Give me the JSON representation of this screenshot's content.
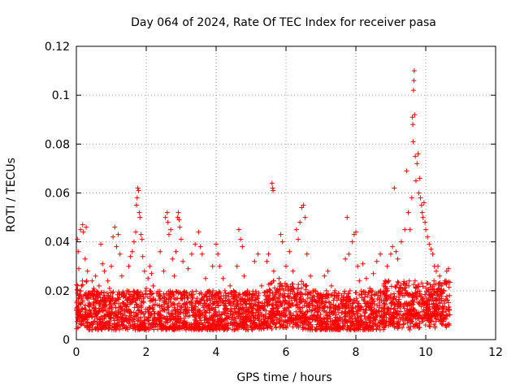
{
  "chart_data": {
    "type": "scatter",
    "title": "Day 064 of 2024, Rate Of TEC Index for receiver pasa",
    "xlabel": "GPS time / hours",
    "ylabel": "ROTI / TECUs",
    "xlim": [
      0,
      12
    ],
    "ylim": [
      0,
      0.12
    ],
    "x_ticks": [
      0,
      2,
      4,
      6,
      8,
      10,
      12
    ],
    "x_tick_labels": [
      "0",
      "2",
      "4",
      "6",
      "8",
      "10",
      "12"
    ],
    "y_ticks": [
      0,
      0.02,
      0.04,
      0.06,
      0.08,
      0.1,
      0.12
    ],
    "y_tick_labels": [
      "0",
      "0.02",
      "0.04",
      "0.06",
      "0.08",
      "0.1",
      "0.12"
    ],
    "grid": true,
    "marker": "plus",
    "color": "#ff0000",
    "series": [
      {
        "name": "ROTI",
        "points": [
          [
            0.02,
            0.012
          ],
          [
            0.03,
            0.041
          ],
          [
            0.05,
            0.036
          ],
          [
            0.07,
            0.029
          ],
          [
            0.1,
            0.018
          ],
          [
            0.12,
            0.045
          ],
          [
            0.15,
            0.022
          ],
          [
            0.18,
            0.047
          ],
          [
            0.2,
            0.044
          ],
          [
            0.25,
            0.033
          ],
          [
            0.28,
            0.046
          ],
          [
            0.32,
            0.028
          ],
          [
            0.36,
            0.015
          ],
          [
            0.4,
            0.019
          ],
          [
            0.45,
            0.024
          ],
          [
            0.5,
            0.021
          ],
          [
            0.55,
            0.026
          ],
          [
            0.6,
            0.018
          ],
          [
            0.65,
            0.022
          ],
          [
            0.7,
            0.039
          ],
          [
            0.75,
            0.031
          ],
          [
            0.8,
            0.028
          ],
          [
            0.85,
            0.016
          ],
          [
            0.9,
            0.024
          ],
          [
            0.95,
            0.021
          ],
          [
            1.0,
            0.03
          ],
          [
            1.05,
            0.042
          ],
          [
            1.1,
            0.046
          ],
          [
            1.15,
            0.038
          ],
          [
            1.2,
            0.043
          ],
          [
            1.25,
            0.035
          ],
          [
            1.3,
            0.026
          ],
          [
            1.35,
            0.019
          ],
          [
            1.4,
            0.014
          ],
          [
            1.45,
            0.02
          ],
          [
            1.5,
            0.03
          ],
          [
            1.55,
            0.034
          ],
          [
            1.6,
            0.036
          ],
          [
            1.65,
            0.04
          ],
          [
            1.7,
            0.044
          ],
          [
            1.72,
            0.055
          ],
          [
            1.74,
            0.058
          ],
          [
            1.76,
            0.062
          ],
          [
            1.78,
            0.061
          ],
          [
            1.8,
            0.052
          ],
          [
            1.82,
            0.05
          ],
          [
            1.85,
            0.043
          ],
          [
            1.88,
            0.041
          ],
          [
            1.9,
            0.034
          ],
          [
            1.95,
            0.028
          ],
          [
            2.0,
            0.021
          ],
          [
            2.05,
            0.025
          ],
          [
            2.1,
            0.03
          ],
          [
            2.15,
            0.027
          ],
          [
            2.2,
            0.022
          ],
          [
            2.3,
            0.019
          ],
          [
            2.4,
            0.036
          ],
          [
            2.5,
            0.028
          ],
          [
            2.55,
            0.05
          ],
          [
            2.6,
            0.052
          ],
          [
            2.62,
            0.048
          ],
          [
            2.65,
            0.043
          ],
          [
            2.7,
            0.045
          ],
          [
            2.75,
            0.033
          ],
          [
            2.8,
            0.026
          ],
          [
            2.85,
            0.036
          ],
          [
            2.9,
            0.05
          ],
          [
            2.92,
            0.052
          ],
          [
            2.94,
            0.049
          ],
          [
            2.96,
            0.046
          ],
          [
            3.0,
            0.041
          ],
          [
            3.05,
            0.032
          ],
          [
            3.1,
            0.018
          ],
          [
            3.2,
            0.029
          ],
          [
            3.3,
            0.035
          ],
          [
            3.4,
            0.039
          ],
          [
            3.5,
            0.044
          ],
          [
            3.55,
            0.038
          ],
          [
            3.6,
            0.035
          ],
          [
            3.7,
            0.025
          ],
          [
            3.8,
            0.02
          ],
          [
            3.9,
            0.03
          ],
          [
            4.0,
            0.039
          ],
          [
            4.05,
            0.035
          ],
          [
            4.1,
            0.03
          ],
          [
            4.2,
            0.025
          ],
          [
            4.3,
            0.018
          ],
          [
            4.4,
            0.022
          ],
          [
            4.5,
            0.02
          ],
          [
            4.6,
            0.03
          ],
          [
            4.65,
            0.045
          ],
          [
            4.7,
            0.041
          ],
          [
            4.75,
            0.038
          ],
          [
            4.8,
            0.026
          ],
          [
            4.9,
            0.02
          ],
          [
            5.0,
            0.017
          ],
          [
            5.1,
            0.032
          ],
          [
            5.2,
            0.035
          ],
          [
            5.3,
            0.022
          ],
          [
            5.4,
            0.018
          ],
          [
            5.45,
            0.032
          ],
          [
            5.5,
            0.035
          ],
          [
            5.6,
            0.064
          ],
          [
            5.62,
            0.062
          ],
          [
            5.63,
            0.061
          ],
          [
            5.65,
            0.028
          ],
          [
            5.7,
            0.019
          ],
          [
            5.8,
            0.025
          ],
          [
            5.85,
            0.043
          ],
          [
            5.9,
            0.04
          ],
          [
            6.0,
            0.03
          ],
          [
            6.1,
            0.036
          ],
          [
            6.2,
            0.028
          ],
          [
            6.3,
            0.045
          ],
          [
            6.35,
            0.041
          ],
          [
            6.4,
            0.048
          ],
          [
            6.45,
            0.054
          ],
          [
            6.5,
            0.055
          ],
          [
            6.55,
            0.05
          ],
          [
            6.6,
            0.035
          ],
          [
            6.7,
            0.026
          ],
          [
            6.8,
            0.02
          ],
          [
            6.9,
            0.015
          ],
          [
            7.0,
            0.018
          ],
          [
            7.1,
            0.026
          ],
          [
            7.2,
            0.028
          ],
          [
            7.3,
            0.022
          ],
          [
            7.4,
            0.02
          ],
          [
            7.5,
            0.017
          ],
          [
            7.6,
            0.015
          ],
          [
            7.7,
            0.033
          ],
          [
            7.75,
            0.05
          ],
          [
            7.8,
            0.035
          ],
          [
            7.9,
            0.04
          ],
          [
            7.95,
            0.043
          ],
          [
            8.0,
            0.044
          ],
          [
            8.05,
            0.03
          ],
          [
            8.1,
            0.024
          ],
          [
            8.2,
            0.031
          ],
          [
            8.3,
            0.025
          ],
          [
            8.4,
            0.021
          ],
          [
            8.5,
            0.027
          ],
          [
            8.6,
            0.032
          ],
          [
            8.7,
            0.035
          ],
          [
            8.8,
            0.022
          ],
          [
            8.9,
            0.03
          ],
          [
            9.0,
            0.035
          ],
          [
            9.05,
            0.038
          ],
          [
            9.1,
            0.062
          ],
          [
            9.15,
            0.036
          ],
          [
            9.2,
            0.033
          ],
          [
            9.3,
            0.04
          ],
          [
            9.4,
            0.045
          ],
          [
            9.45,
            0.069
          ],
          [
            9.5,
            0.052
          ],
          [
            9.55,
            0.045
          ],
          [
            9.6,
            0.058
          ],
          [
            9.62,
            0.091
          ],
          [
            9.63,
            0.088
          ],
          [
            9.64,
            0.081
          ],
          [
            9.65,
            0.102
          ],
          [
            9.66,
            0.106
          ],
          [
            9.67,
            0.11
          ],
          [
            9.68,
            0.092
          ],
          [
            9.7,
            0.075
          ],
          [
            9.72,
            0.065
          ],
          [
            9.75,
            0.072
          ],
          [
            9.78,
            0.076
          ],
          [
            9.8,
            0.06
          ],
          [
            9.83,
            0.066
          ],
          [
            9.85,
            0.058
          ],
          [
            9.88,
            0.055
          ],
          [
            9.9,
            0.052
          ],
          [
            9.92,
            0.05
          ],
          [
            9.95,
            0.056
          ],
          [
            9.98,
            0.048
          ],
          [
            10.0,
            0.045
          ],
          [
            10.05,
            0.042
          ],
          [
            10.1,
            0.039
          ],
          [
            10.15,
            0.037
          ],
          [
            10.2,
            0.035
          ],
          [
            10.25,
            0.03
          ],
          [
            10.3,
            0.028
          ],
          [
            10.35,
            0.03
          ],
          [
            10.4,
            0.026
          ],
          [
            10.45,
            0.022
          ],
          [
            10.5,
            0.02
          ],
          [
            10.55,
            0.024
          ],
          [
            10.6,
            0.028
          ],
          [
            10.65,
            0.029
          ],
          [
            10.68,
            0.018
          ]
        ]
      }
    ],
    "dense_band": {
      "note": "dense background cloud of points beneath the plotted spikes",
      "x_range": [
        0,
        10.7
      ],
      "y_range": [
        0.002,
        0.02
      ]
    }
  }
}
